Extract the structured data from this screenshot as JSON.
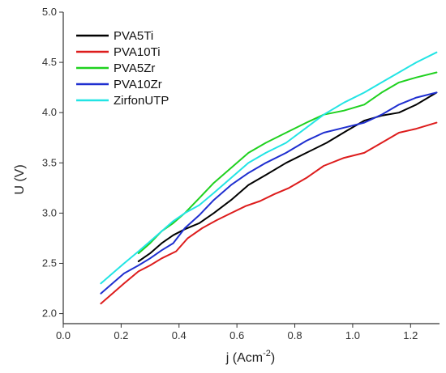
{
  "chart_data": {
    "type": "line",
    "title": "",
    "xlabel": "j (Acm",
    "xlabel_sup": "-2",
    "xlabel_close": ")",
    "ylabel": "U (V)",
    "xlim": [
      0.0,
      1.3
    ],
    "ylim": [
      1.9,
      5.0
    ],
    "xticks": [
      0.0,
      0.2,
      0.4,
      0.6,
      0.8,
      1.0,
      1.2
    ],
    "xtick_labels": [
      "0.0",
      "0.2",
      "0.4",
      "0.6",
      "0.8",
      "1.0",
      "1.2"
    ],
    "yticks": [
      2.0,
      2.5,
      3.0,
      3.5,
      4.0,
      4.5,
      5.0
    ],
    "ytick_labels": [
      "2.0",
      "2.5",
      "3.0",
      "3.5",
      "4.0",
      "4.5",
      "5.0"
    ],
    "grid": false,
    "legend_position": "top-left",
    "series": [
      {
        "name": "PVA5Ti",
        "color": "#000000",
        "x": [
          0.26,
          0.3,
          0.34,
          0.38,
          0.42,
          0.47,
          0.52,
          0.58,
          0.64,
          0.7,
          0.77,
          0.84,
          0.91,
          0.98,
          1.04,
          1.1,
          1.16,
          1.22,
          1.29
        ],
        "y": [
          2.52,
          2.6,
          2.7,
          2.78,
          2.84,
          2.9,
          3.0,
          3.13,
          3.28,
          3.38,
          3.5,
          3.6,
          3.7,
          3.82,
          3.92,
          3.97,
          4.0,
          4.08,
          4.2
        ]
      },
      {
        "name": "PVA10Ti",
        "color": "#dd1c1c",
        "x": [
          0.13,
          0.17,
          0.21,
          0.26,
          0.3,
          0.34,
          0.39,
          0.43,
          0.48,
          0.53,
          0.58,
          0.63,
          0.68,
          0.73,
          0.78,
          0.84,
          0.9,
          0.97,
          1.04,
          1.1,
          1.16,
          1.22,
          1.29
        ],
        "y": [
          2.1,
          2.2,
          2.3,
          2.42,
          2.48,
          2.55,
          2.62,
          2.75,
          2.85,
          2.93,
          3.0,
          3.07,
          3.12,
          3.19,
          3.25,
          3.35,
          3.47,
          3.55,
          3.6,
          3.7,
          3.8,
          3.84,
          3.9
        ]
      },
      {
        "name": "PVA5Zr",
        "color": "#1fd11f",
        "x": [
          0.26,
          0.3,
          0.34,
          0.38,
          0.42,
          0.47,
          0.52,
          0.58,
          0.64,
          0.7,
          0.77,
          0.84,
          0.9,
          0.97,
          1.04,
          1.1,
          1.16,
          1.22,
          1.29
        ],
        "y": [
          2.6,
          2.7,
          2.82,
          2.9,
          3.0,
          3.15,
          3.3,
          3.45,
          3.6,
          3.7,
          3.8,
          3.9,
          3.98,
          4.02,
          4.08,
          4.2,
          4.3,
          4.35,
          4.4
        ]
      },
      {
        "name": "PVA10Zr",
        "color": "#1f2fd0",
        "x": [
          0.13,
          0.17,
          0.21,
          0.26,
          0.3,
          0.34,
          0.38,
          0.42,
          0.47,
          0.52,
          0.58,
          0.64,
          0.7,
          0.77,
          0.84,
          0.9,
          0.97,
          1.04,
          1.1,
          1.16,
          1.22,
          1.29
        ],
        "y": [
          2.2,
          2.3,
          2.4,
          2.48,
          2.55,
          2.63,
          2.7,
          2.85,
          2.98,
          3.13,
          3.28,
          3.4,
          3.5,
          3.6,
          3.72,
          3.8,
          3.85,
          3.9,
          3.98,
          4.08,
          4.15,
          4.2
        ]
      },
      {
        "name": "ZirfonUTP",
        "color": "#22e4e4",
        "x": [
          0.13,
          0.17,
          0.21,
          0.26,
          0.3,
          0.34,
          0.38,
          0.42,
          0.47,
          0.52,
          0.58,
          0.64,
          0.7,
          0.77,
          0.84,
          0.9,
          0.97,
          1.04,
          1.1,
          1.16,
          1.22,
          1.29
        ],
        "y": [
          2.3,
          2.4,
          2.5,
          2.62,
          2.72,
          2.82,
          2.92,
          3.0,
          3.08,
          3.2,
          3.35,
          3.5,
          3.6,
          3.7,
          3.85,
          3.98,
          4.1,
          4.2,
          4.3,
          4.4,
          4.5,
          4.6
        ]
      }
    ]
  }
}
